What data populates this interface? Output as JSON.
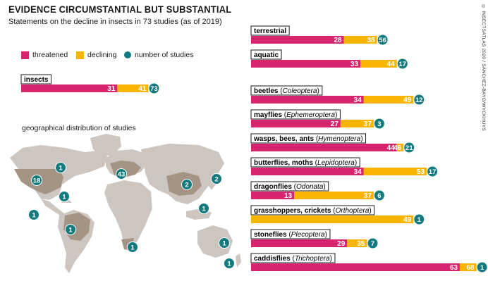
{
  "header": {
    "title": "EVIDENCE CIRCUMSTANTIAL BUT SUBSTANTIAL",
    "subtitle": "Statements on the decline in insects in 73 studies (as of 2019)",
    "credit": "© INSECTSATLAS 2020 / SÁNCHEZ-BAYO/WYCKHUYS"
  },
  "legend": {
    "threatened": "threatened",
    "declining": "declining",
    "studies": "number of studies"
  },
  "colors": {
    "threatened": "#d6246e",
    "declining": "#f7b500",
    "studies": "#137a7f",
    "land": "#cdc6c0",
    "highlight": "#a39484"
  },
  "geo": {
    "title": "geographical distribution of studies",
    "regions": [
      {
        "name": "north america",
        "count": "18"
      },
      {
        "name": "canada",
        "count": "1"
      },
      {
        "name": "caribbean",
        "count": "1"
      },
      {
        "name": "central america",
        "count": "1"
      },
      {
        "name": "brazil",
        "count": "1"
      },
      {
        "name": "europe",
        "count": "43"
      },
      {
        "name": "china",
        "count": "2"
      },
      {
        "name": "japan",
        "count": "2"
      },
      {
        "name": "southeast asia",
        "count": "1"
      },
      {
        "name": "south africa",
        "count": "1"
      },
      {
        "name": "australia",
        "count": "1"
      },
      {
        "name": "new zealand",
        "count": "1"
      }
    ]
  },
  "chart_data": {
    "type": "bar",
    "title": "Statements on the decline in insects in 73 studies (as of 2019)",
    "stacked": true,
    "series_names": [
      "threatened",
      "declining"
    ],
    "overall": {
      "label": "insects",
      "threatened": 31,
      "declining": 41,
      "studies": 73
    },
    "groups": [
      {
        "label": "terrestrial",
        "latin": "",
        "threatened": 28,
        "declining": 38,
        "studies": 56
      },
      {
        "label": "aquatic",
        "latin": "",
        "threatened": 33,
        "declining": 44,
        "studies": 17
      },
      {
        "label": "beetles",
        "latin": "Coleoptera",
        "threatened": 34,
        "declining": 49,
        "studies": 12
      },
      {
        "label": "mayflies",
        "latin": "Ephemeroptera",
        "threatened": 27,
        "declining": 37,
        "studies": 3
      },
      {
        "label": "wasps, bees, ants",
        "latin": "Hymenoptera",
        "threatened": 44,
        "declining": 46,
        "studies": 21
      },
      {
        "label": "butterflies, moths",
        "latin": "Lepidoptera",
        "threatened": 34,
        "declining": 53,
        "studies": 17
      },
      {
        "label": "dragonflies",
        "latin": "Odonata",
        "threatened": 13,
        "declining": 37,
        "studies": 6
      },
      {
        "label": "grasshoppers, crickets",
        "latin": "Orthoptera",
        "threatened": 0,
        "declining": 49,
        "studies": 1
      },
      {
        "label": "stoneflies",
        "latin": "Plecoptera",
        "threatened": 29,
        "declining": 35,
        "studies": 7
      },
      {
        "label": "caddisflies",
        "latin": "Trichoptera",
        "threatened": 63,
        "declining": 68,
        "studies": 1
      }
    ]
  }
}
